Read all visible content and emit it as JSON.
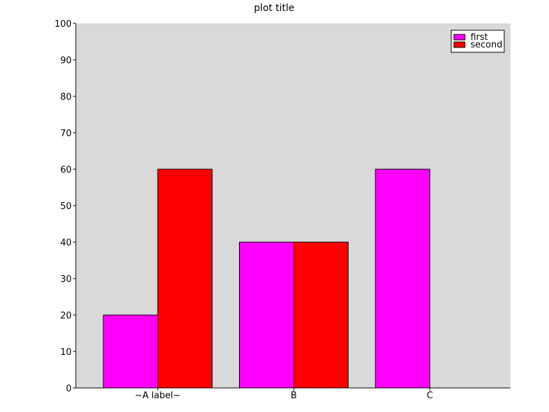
{
  "chart_data": {
    "type": "bar",
    "title": "plot title",
    "categories": [
      "~A label~",
      "B",
      "C"
    ],
    "series": [
      {
        "name": "first",
        "values": [
          20,
          40,
          60
        ],
        "color": "#ff00ff"
      },
      {
        "name": "second",
        "values": [
          60,
          40,
          null
        ],
        "color": "#ff0000"
      }
    ],
    "ylim": [
      0,
      100
    ],
    "yticks": [
      "0",
      "10",
      "20",
      "30",
      "40",
      "50",
      "60",
      "70",
      "80",
      "90",
      "100"
    ],
    "grid": false,
    "legend_position": "top-right",
    "plot_background": "#d9d9d9"
  }
}
